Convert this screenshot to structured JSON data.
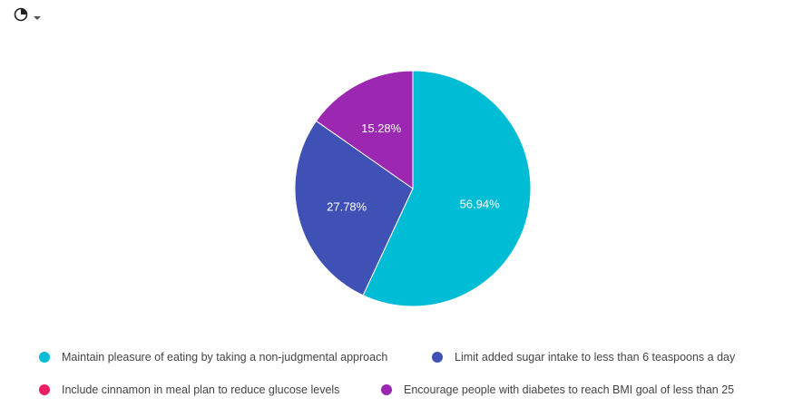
{
  "toolbar": {
    "chart_type_icon": "pie-chart-icon",
    "dropdown_icon": "caret-down-icon"
  },
  "chart_data": {
    "type": "pie",
    "title": "",
    "legend_position": "bottom",
    "slices": [
      {
        "label": "Maintain pleasure of eating by taking a non-judgmental approach",
        "value": 56.94,
        "display": "56.94%",
        "color": "#00bcd4"
      },
      {
        "label": "Limit added sugar intake to less than 6 teaspoons a day",
        "value": 27.78,
        "display": "27.78%",
        "color": "#3f51b5"
      },
      {
        "label": "Include cinnamon in meal plan to reduce glucose levels",
        "value": 0,
        "display": "",
        "color": "#e91e63"
      },
      {
        "label": "Encourage people with diabetes to reach BMI goal of less than 25",
        "value": 15.28,
        "display": "15.28%",
        "color": "#9c27b0"
      }
    ]
  }
}
